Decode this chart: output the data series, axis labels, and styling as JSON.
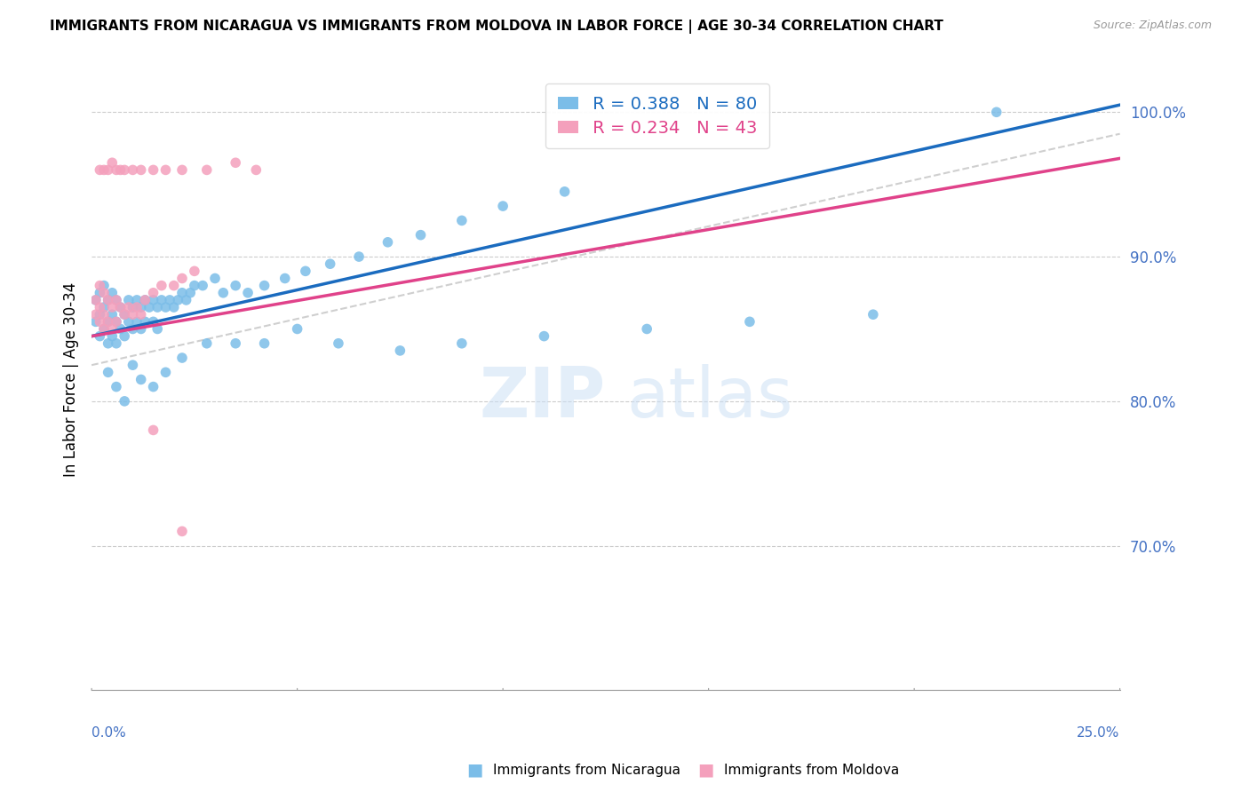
{
  "title": "IMMIGRANTS FROM NICARAGUA VS IMMIGRANTS FROM MOLDOVA IN LABOR FORCE | AGE 30-34 CORRELATION CHART",
  "source": "Source: ZipAtlas.com",
  "ylabel": "In Labor Force | Age 30-34",
  "ylabel_right_ticks": [
    "100.0%",
    "90.0%",
    "80.0%",
    "70.0%"
  ],
  "ylabel_right_vals": [
    1.0,
    0.9,
    0.8,
    0.7
  ],
  "xlim": [
    0.0,
    0.25
  ],
  "ylim": [
    0.6,
    1.03
  ],
  "legend_blue_r": "R = 0.388",
  "legend_blue_n": "N = 80",
  "legend_pink_r": "R = 0.234",
  "legend_pink_n": "N = 43",
  "color_blue": "#7bbde8",
  "color_pink": "#f4a0bc",
  "color_trendline_blue": "#1a6bbf",
  "color_trendline_pink": "#e0428a",
  "color_trendline_dashed": "#bbbbbb",
  "nicaragua_x": [
    0.001,
    0.001,
    0.002,
    0.002,
    0.002,
    0.003,
    0.003,
    0.003,
    0.004,
    0.004,
    0.004,
    0.005,
    0.005,
    0.005,
    0.006,
    0.006,
    0.006,
    0.007,
    0.007,
    0.008,
    0.008,
    0.009,
    0.009,
    0.01,
    0.01,
    0.011,
    0.011,
    0.012,
    0.012,
    0.013,
    0.013,
    0.014,
    0.015,
    0.015,
    0.016,
    0.016,
    0.017,
    0.018,
    0.019,
    0.02,
    0.021,
    0.022,
    0.023,
    0.024,
    0.025,
    0.027,
    0.03,
    0.032,
    0.035,
    0.038,
    0.042,
    0.047,
    0.052,
    0.058,
    0.065,
    0.072,
    0.08,
    0.09,
    0.1,
    0.115,
    0.004,
    0.006,
    0.008,
    0.01,
    0.012,
    0.015,
    0.018,
    0.022,
    0.028,
    0.035,
    0.042,
    0.05,
    0.06,
    0.075,
    0.09,
    0.11,
    0.135,
    0.16,
    0.19,
    0.22
  ],
  "nicaragua_y": [
    0.87,
    0.855,
    0.875,
    0.86,
    0.845,
    0.88,
    0.865,
    0.85,
    0.87,
    0.855,
    0.84,
    0.875,
    0.86,
    0.845,
    0.87,
    0.855,
    0.84,
    0.865,
    0.85,
    0.86,
    0.845,
    0.87,
    0.855,
    0.865,
    0.85,
    0.87,
    0.855,
    0.865,
    0.85,
    0.87,
    0.855,
    0.865,
    0.87,
    0.855,
    0.865,
    0.85,
    0.87,
    0.865,
    0.87,
    0.865,
    0.87,
    0.875,
    0.87,
    0.875,
    0.88,
    0.88,
    0.885,
    0.875,
    0.88,
    0.875,
    0.88,
    0.885,
    0.89,
    0.895,
    0.9,
    0.91,
    0.915,
    0.925,
    0.935,
    0.945,
    0.82,
    0.81,
    0.8,
    0.825,
    0.815,
    0.81,
    0.82,
    0.83,
    0.84,
    0.84,
    0.84,
    0.85,
    0.84,
    0.835,
    0.84,
    0.845,
    0.85,
    0.855,
    0.86,
    1.0
  ],
  "moldova_x": [
    0.001,
    0.001,
    0.002,
    0.002,
    0.002,
    0.003,
    0.003,
    0.003,
    0.004,
    0.004,
    0.005,
    0.005,
    0.006,
    0.006,
    0.007,
    0.008,
    0.009,
    0.01,
    0.011,
    0.012,
    0.013,
    0.015,
    0.017,
    0.02,
    0.022,
    0.025,
    0.002,
    0.003,
    0.004,
    0.005,
    0.006,
    0.007,
    0.008,
    0.01,
    0.012,
    0.015,
    0.018,
    0.022,
    0.028,
    0.035,
    0.04,
    0.015,
    0.022
  ],
  "moldova_y": [
    0.87,
    0.86,
    0.88,
    0.865,
    0.855,
    0.875,
    0.86,
    0.85,
    0.87,
    0.855,
    0.865,
    0.85,
    0.87,
    0.855,
    0.865,
    0.86,
    0.865,
    0.86,
    0.865,
    0.86,
    0.87,
    0.875,
    0.88,
    0.88,
    0.885,
    0.89,
    0.96,
    0.96,
    0.96,
    0.965,
    0.96,
    0.96,
    0.96,
    0.96,
    0.96,
    0.96,
    0.96,
    0.96,
    0.96,
    0.965,
    0.96,
    0.78,
    0.71
  ],
  "trendline_blue_x0": 0.0,
  "trendline_blue_y0": 0.845,
  "trendline_blue_x1": 0.25,
  "trendline_blue_y1": 1.005,
  "trendline_pink_x0": 0.0,
  "trendline_pink_y0": 0.845,
  "trendline_pink_x1": 0.25,
  "trendline_pink_y1": 0.968,
  "trendline_dash_x0": 0.0,
  "trendline_dash_y0": 0.845,
  "trendline_dash_x1": 0.25,
  "trendline_dash_y1": 1.005
}
